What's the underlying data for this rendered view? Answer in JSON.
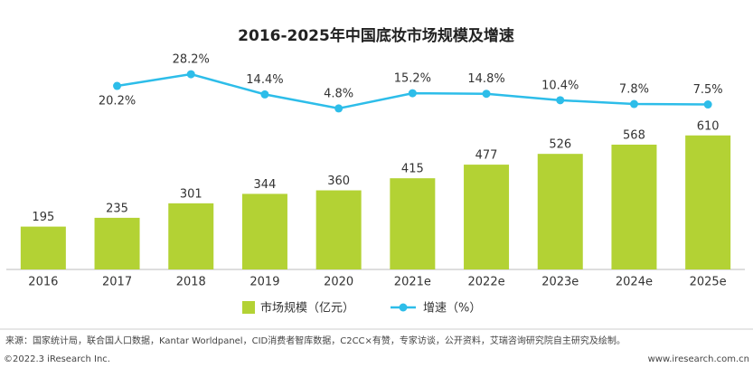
{
  "chart_data": {
    "type": "bar_line",
    "title": "2016-2025年中国底妆市场规模及增速",
    "categories": [
      "2016",
      "2017",
      "2018",
      "2019",
      "2020",
      "2021e",
      "2022e",
      "2023e",
      "2024e",
      "2025e"
    ],
    "series": [
      {
        "name": "市场规模（亿元）",
        "color": "#b3d234",
        "type": "bar",
        "values": [
          195,
          235,
          301,
          344,
          360,
          415,
          477,
          526,
          568,
          610
        ]
      },
      {
        "name": "增速（%）",
        "color": "#2dbde9",
        "type": "line",
        "axis": "y2",
        "values": [
          null,
          20.2,
          28.2,
          14.4,
          4.8,
          15.2,
          14.8,
          10.4,
          7.8,
          7.5
        ],
        "value_labels": [
          null,
          "20.2%",
          "28.2%",
          "14.4%",
          "4.8%",
          "15.2%",
          "14.8%",
          "10.4%",
          "7.8%",
          "7.5%"
        ]
      }
    ],
    "ylim": [
      0,
      1000
    ],
    "y2lim": [
      -20,
      40
    ],
    "source": "来源：国家统计局，联合国人口数据，Kantar Worldpanel，CID消费者智库数据，C2CC×有赞，专家访谈，公开资料，艾瑞咨询研究院自主研究及绘制。",
    "copyright": "©2022.3 iResearch Inc.",
    "website": "www.iresearch.com.cn"
  }
}
